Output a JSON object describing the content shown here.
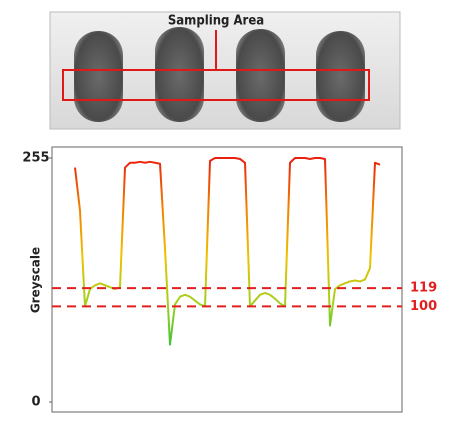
{
  "chart_data": {
    "type": "line",
    "annotation": "Sampling Area",
    "ylabel": "Greyscale",
    "ylim": [
      0,
      255
    ],
    "yticks": [
      0,
      255
    ],
    "color_scale": [
      "#10a0a0",
      "#30c040",
      "#a0d020",
      "#f0c000",
      "#f08000",
      "#e82010"
    ],
    "reference_lines": [
      {
        "value": 119,
        "color": "#e02020"
      },
      {
        "value": 100,
        "color": "#e02020"
      }
    ],
    "values": [
      245,
      200,
      100,
      118,
      122,
      124,
      122,
      120,
      118,
      120,
      245,
      250,
      250,
      251,
      250,
      251,
      250,
      249,
      160,
      60,
      102,
      110,
      112,
      110,
      106,
      102,
      100,
      252,
      255,
      255,
      255,
      255,
      255,
      254,
      250,
      100,
      106,
      112,
      114,
      112,
      108,
      103,
      100,
      250,
      255,
      255,
      255,
      254,
      255,
      255,
      254,
      80,
      118,
      122,
      124,
      126,
      127,
      126,
      128,
      140,
      250,
      248
    ]
  }
}
